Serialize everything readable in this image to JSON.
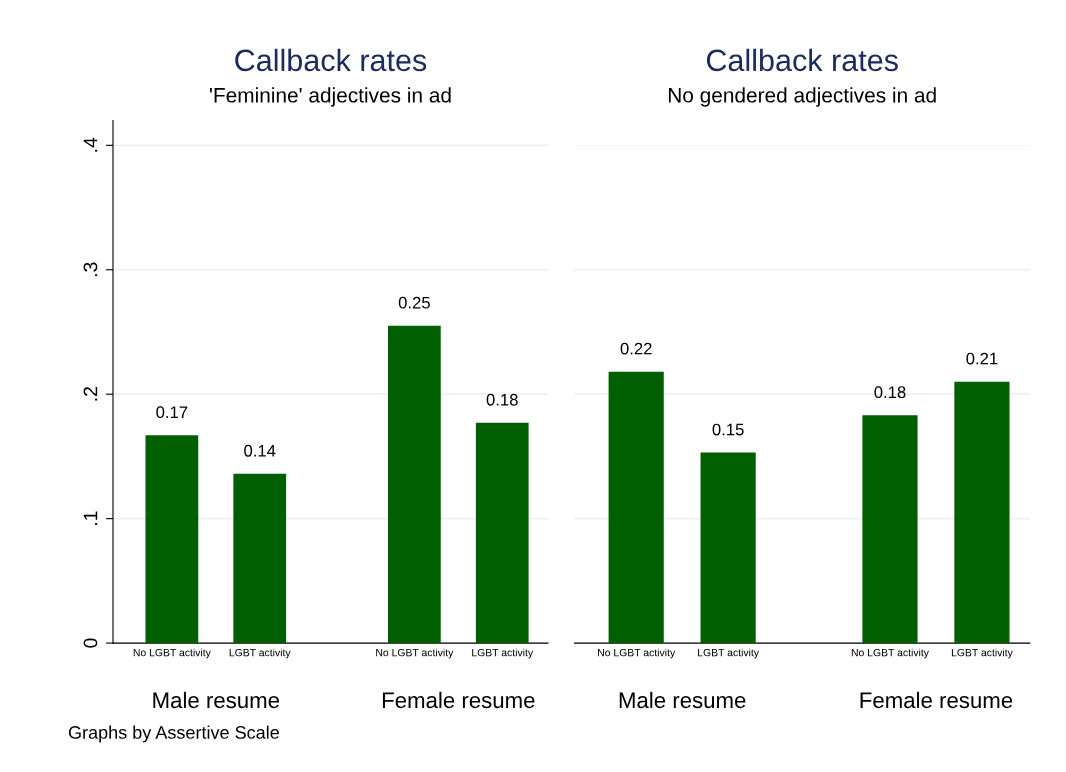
{
  "chart_data": [
    {
      "type": "bar",
      "title": "Callback rates",
      "subtitle": "'Feminine' adjectives in ad",
      "categories": [
        "No LGBT activity",
        "LGBT activity",
        "No LGBT activity",
        "LGBT activity"
      ],
      "values": [
        0.167,
        0.136,
        0.255,
        0.177
      ],
      "value_labels": [
        "0.17",
        "0.14",
        "0.25",
        "0.18"
      ],
      "color": "#005f00",
      "ylim": [
        0,
        0.42
      ],
      "yticks": [
        0,
        {
          "value": 0.1,
          "label": ".1"
        },
        {
          "value": 0.2,
          "label": ".2"
        },
        {
          "value": 0.3,
          "label": ".3"
        },
        {
          "value": 0.4,
          "label": ".4"
        }
      ],
      "grid": "y",
      "annotations": [
        "Male resume",
        "Female resume",
        "Graphs by Assertive Scale"
      ]
    },
    {
      "type": "bar",
      "title": "Callback rates",
      "subtitle": "No gendered adjectives in ad",
      "categories": [
        "No LGBT activity",
        "LGBT activity",
        "No LGBT activity",
        "LGBT activity"
      ],
      "values": [
        0.218,
        0.153,
        0.183,
        0.21
      ],
      "value_labels": [
        "0.22",
        "0.15",
        "0.18",
        "0.21"
      ],
      "color": "#005f00",
      "ylim": [
        0,
        0.4
      ],
      "yticks": [
        {
          "value": 0,
          "label": null
        },
        {
          "value": 0.1,
          "label": null
        },
        {
          "value": 0.2,
          "label": null
        },
        {
          "value": 0.3,
          "label": null
        },
        {
          "value": 0.4,
          "label": null
        }
      ],
      "grid": "y",
      "tick_labels": "x",
      "annotations": [
        "Male resume",
        "Female resume"
      ]
    }
  ]
}
